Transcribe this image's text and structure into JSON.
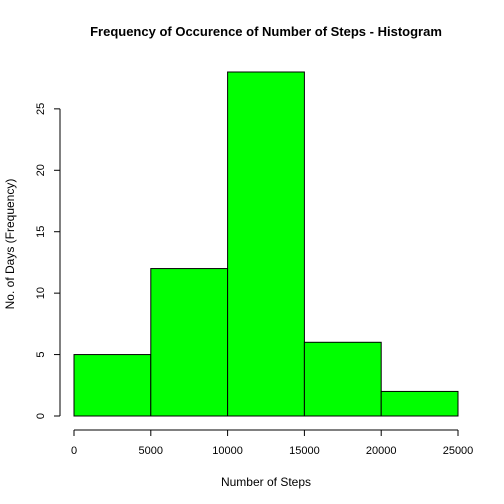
{
  "chart_data": {
    "type": "bar",
    "title": "Frequency of Occurence of Number of Steps - Histogram",
    "xlabel": "Number of Steps",
    "ylabel": "No. of Days (Frequency)",
    "bins": [
      {
        "start": 0,
        "end": 5000,
        "value": 5
      },
      {
        "start": 5000,
        "end": 10000,
        "value": 12
      },
      {
        "start": 10000,
        "end": 15000,
        "value": 28
      },
      {
        "start": 15000,
        "end": 20000,
        "value": 6
      },
      {
        "start": 20000,
        "end": 25000,
        "value": 2
      }
    ],
    "xlim": [
      0,
      25000
    ],
    "ylim": [
      0,
      28
    ],
    "x_ticks": [
      0,
      5000,
      10000,
      15000,
      20000,
      25000
    ],
    "y_ticks": [
      0,
      5,
      10,
      15,
      20,
      25
    ],
    "bar_color": "#00ff00",
    "border_color": "#000000",
    "grid": false,
    "legend": "none"
  }
}
